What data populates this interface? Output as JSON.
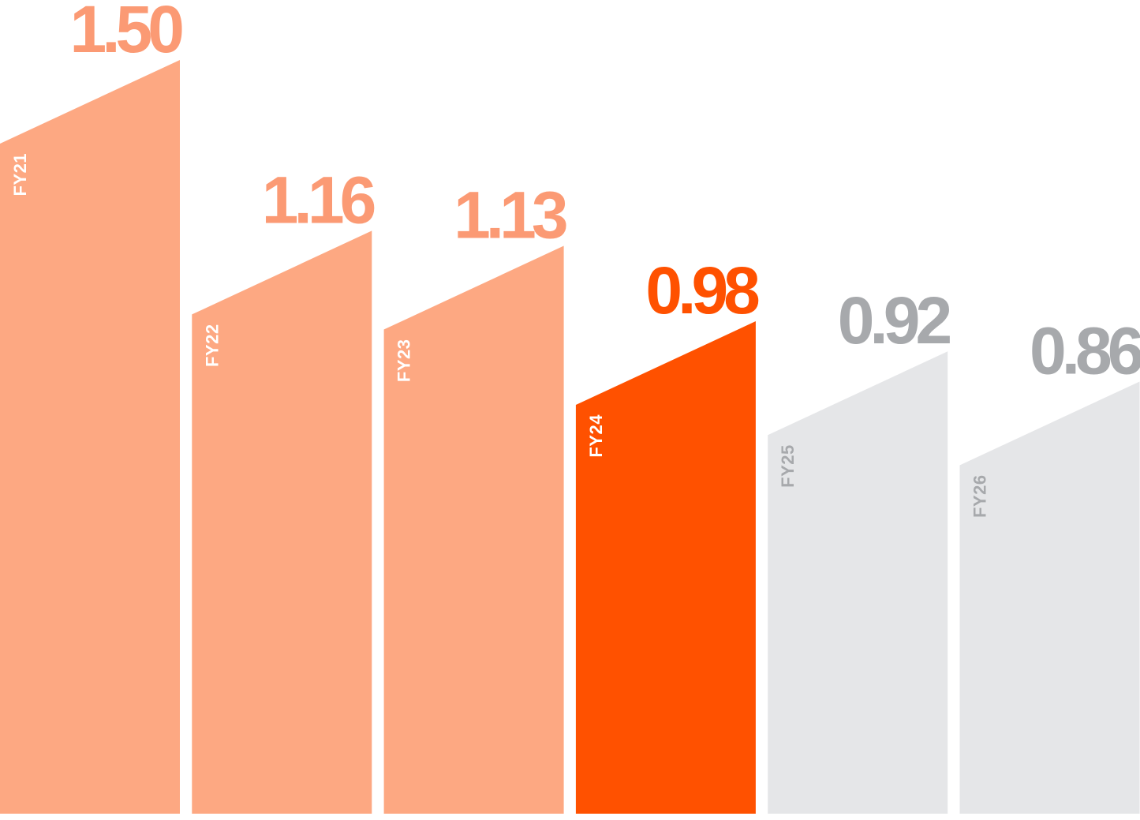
{
  "chart_data": {
    "type": "bar",
    "categories": [
      "FY21",
      "FY22",
      "FY23",
      "FY24",
      "FY25",
      "FY26"
    ],
    "values": [
      1.5,
      1.16,
      1.13,
      0.98,
      0.92,
      0.86
    ],
    "value_labels": [
      "1.50",
      "1.16",
      "1.13",
      "0.98",
      "0.92",
      "0.86"
    ],
    "bar_status": [
      "actual",
      "actual",
      "actual",
      "current",
      "projected",
      "projected"
    ],
    "title": "",
    "xlabel": "",
    "ylabel": "",
    "ylim": [
      0,
      1.5
    ],
    "grid": false,
    "legend": "none"
  },
  "colors": {
    "actual_bar": "#fda882",
    "actual_value": "#fb9a74",
    "actual_category": "#ffffff",
    "current_bar": "#ff5100",
    "current_value": "#ff5100",
    "current_category": "#ffffff",
    "projected_bar": "#e5e6e8",
    "projected_value": "#a7a9ac",
    "projected_category": "#a7a9ac"
  }
}
